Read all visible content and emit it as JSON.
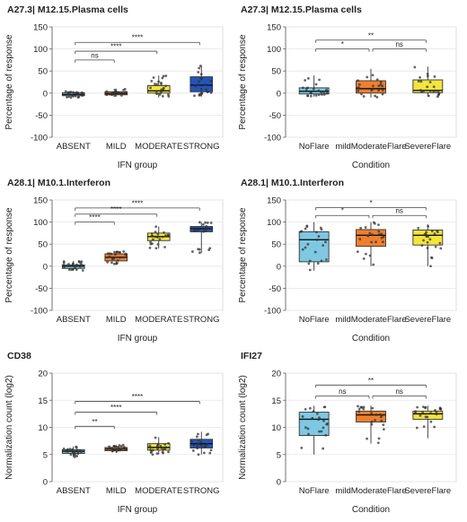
{
  "figure": {
    "colors": {
      "ABSENT": "#7ec8e3",
      "MILD": "#ee7f2d",
      "MODERATE": "#f3e53c",
      "STRONG": "#2255bb",
      "NoFlare": "#7ec8e3",
      "mildModerateFlare": "#ee7f2d",
      "SevereFlare": "#f3e53c"
    }
  },
  "chart_data": [
    {
      "type": "box",
      "title": "A27.3| M12.15.Plasma cells",
      "xlabel": "IFN group",
      "ylabel": "Percentage of response",
      "ylim": [
        -100,
        150
      ],
      "yticks": [
        "-100",
        "-50",
        "0",
        "50",
        "100",
        "150"
      ],
      "categories": [
        "ABSENT",
        "MILD",
        "MODERATE",
        "STRONG"
      ],
      "boxes": [
        {
          "min": -10,
          "q1": -6,
          "median": -3,
          "q3": 1,
          "max": 4
        },
        {
          "min": -8,
          "q1": -4,
          "median": -1,
          "q3": 3,
          "max": 10
        },
        {
          "min": -10,
          "q1": 0,
          "median": 5,
          "q3": 17,
          "max": 40
        },
        {
          "min": -8,
          "q1": 3,
          "median": 18,
          "q3": 37,
          "max": 63
        }
      ],
      "comparisons": [
        {
          "a": 0,
          "b": 1,
          "label": "ns",
          "y": 75
        },
        {
          "a": 0,
          "b": 2,
          "label": "****",
          "y": 95
        },
        {
          "a": 0,
          "b": 3,
          "label": "****",
          "y": 115
        }
      ]
    },
    {
      "type": "box",
      "title": "A27.3| M12.15.Plasma cells",
      "xlabel": "Condition",
      "ylabel": "Percentage of response",
      "ylim": [
        -100,
        150
      ],
      "yticks": [
        "-100",
        "-50",
        "0",
        "50",
        "100",
        "150"
      ],
      "categories": [
        "NoFlare",
        "mildModerateFlare",
        "SevereFlare"
      ],
      "boxes": [
        {
          "min": -8,
          "q1": -2,
          "median": 4,
          "q3": 12,
          "max": 40
        },
        {
          "min": -10,
          "q1": 0,
          "median": 10,
          "q3": 28,
          "max": 55
        },
        {
          "min": -8,
          "q1": 1,
          "median": 6,
          "q3": 30,
          "max": 60
        }
      ],
      "comparisons": [
        {
          "a": 0,
          "b": 1,
          "label": "*",
          "y": 100
        },
        {
          "a": 1,
          "b": 2,
          "label": "ns",
          "y": 100
        },
        {
          "a": 0,
          "b": 2,
          "label": "**",
          "y": 120
        }
      ]
    },
    {
      "type": "box",
      "title": "A28.1| M10.1.Interferon",
      "xlabel": "IFN group",
      "ylabel": "Percentage of response",
      "ylim": [
        -100,
        150
      ],
      "yticks": [
        "-100",
        "-50",
        "0",
        "50",
        "100",
        "150"
      ],
      "categories": [
        "ABSENT",
        "MILD",
        "MODERATE",
        "STRONG"
      ],
      "boxes": [
        {
          "min": -10,
          "q1": -5,
          "median": 0,
          "q3": 3,
          "max": 12
        },
        {
          "min": 5,
          "q1": 12,
          "median": 20,
          "q3": 28,
          "max": 35
        },
        {
          "min": 40,
          "q1": 58,
          "median": 67,
          "q3": 75,
          "max": 90
        },
        {
          "min": 30,
          "q1": 78,
          "median": 85,
          "q3": 90,
          "max": 100
        }
      ],
      "comparisons": [
        {
          "a": 0,
          "b": 1,
          "label": "****",
          "y": 100
        },
        {
          "a": 0,
          "b": 2,
          "label": "****",
          "y": 118
        },
        {
          "a": 0,
          "b": 3,
          "label": "****",
          "y": 132
        }
      ]
    },
    {
      "type": "box",
      "title": "A28.1| M10.1.Interferon",
      "xlabel": "Condition",
      "ylabel": "Percentage of response",
      "ylim": [
        -100,
        150
      ],
      "yticks": [
        "-100",
        "-50",
        "0",
        "50",
        "100",
        "150"
      ],
      "categories": [
        "NoFlare",
        "mildModerateFlare",
        "SevereFlare"
      ],
      "boxes": [
        {
          "min": -10,
          "q1": 10,
          "median": 60,
          "q3": 78,
          "max": 100
        },
        {
          "min": 0,
          "q1": 45,
          "median": 70,
          "q3": 83,
          "max": 100
        },
        {
          "min": 0,
          "q1": 48,
          "median": 70,
          "q3": 82,
          "max": 95
        }
      ],
      "comparisons": [
        {
          "a": 0,
          "b": 1,
          "label": "*",
          "y": 115
        },
        {
          "a": 1,
          "b": 2,
          "label": "ns",
          "y": 115
        },
        {
          "a": 0,
          "b": 2,
          "label": "*",
          "y": 133
        }
      ]
    },
    {
      "type": "box",
      "title": "CD38",
      "xlabel": "IFN group",
      "ylabel": "Normalization count (log2)",
      "ylim": [
        0,
        20
      ],
      "yticks": [
        "0",
        "5",
        "10",
        "15",
        "20"
      ],
      "categories": [
        "ABSENT",
        "MILD",
        "MODERATE",
        "STRONG"
      ],
      "boxes": [
        {
          "min": 4.5,
          "q1": 5.2,
          "median": 5.6,
          "q3": 5.9,
          "max": 6.5
        },
        {
          "min": 5.3,
          "q1": 5.7,
          "median": 6.0,
          "q3": 6.3,
          "max": 6.8
        },
        {
          "min": 5.0,
          "q1": 5.8,
          "median": 6.3,
          "q3": 7.0,
          "max": 8.2
        },
        {
          "min": 5.0,
          "q1": 6.2,
          "median": 7.0,
          "q3": 7.8,
          "max": 9.2
        }
      ],
      "comparisons": [
        {
          "a": 0,
          "b": 1,
          "label": "**",
          "y": 10.2
        },
        {
          "a": 0,
          "b": 2,
          "label": "****",
          "y": 12.8
        },
        {
          "a": 0,
          "b": 3,
          "label": "****",
          "y": 14.8
        }
      ]
    },
    {
      "type": "box",
      "title": "IFI27",
      "xlabel": "Condition",
      "ylabel": "Normalization count (log2)",
      "ylim": [
        0,
        20
      ],
      "yticks": [
        "0",
        "5",
        "10",
        "15",
        "20"
      ],
      "categories": [
        "NoFlare",
        "mildModerateFlare",
        "SevereFlare"
      ],
      "boxes": [
        {
          "min": 5.0,
          "q1": 8.5,
          "median": 11.5,
          "q3": 12.8,
          "max": 14.0
        },
        {
          "min": 7.0,
          "q1": 11.0,
          "median": 12.3,
          "q3": 13.0,
          "max": 14.0
        },
        {
          "min": 8.0,
          "q1": 11.5,
          "median": 12.5,
          "q3": 13.0,
          "max": 14.0
        }
      ],
      "comparisons": [
        {
          "a": 0,
          "b": 1,
          "label": "ns",
          "y": 15.8
        },
        {
          "a": 1,
          "b": 2,
          "label": "ns",
          "y": 15.8
        },
        {
          "a": 0,
          "b": 2,
          "label": "**",
          "y": 17.8
        }
      ]
    }
  ]
}
